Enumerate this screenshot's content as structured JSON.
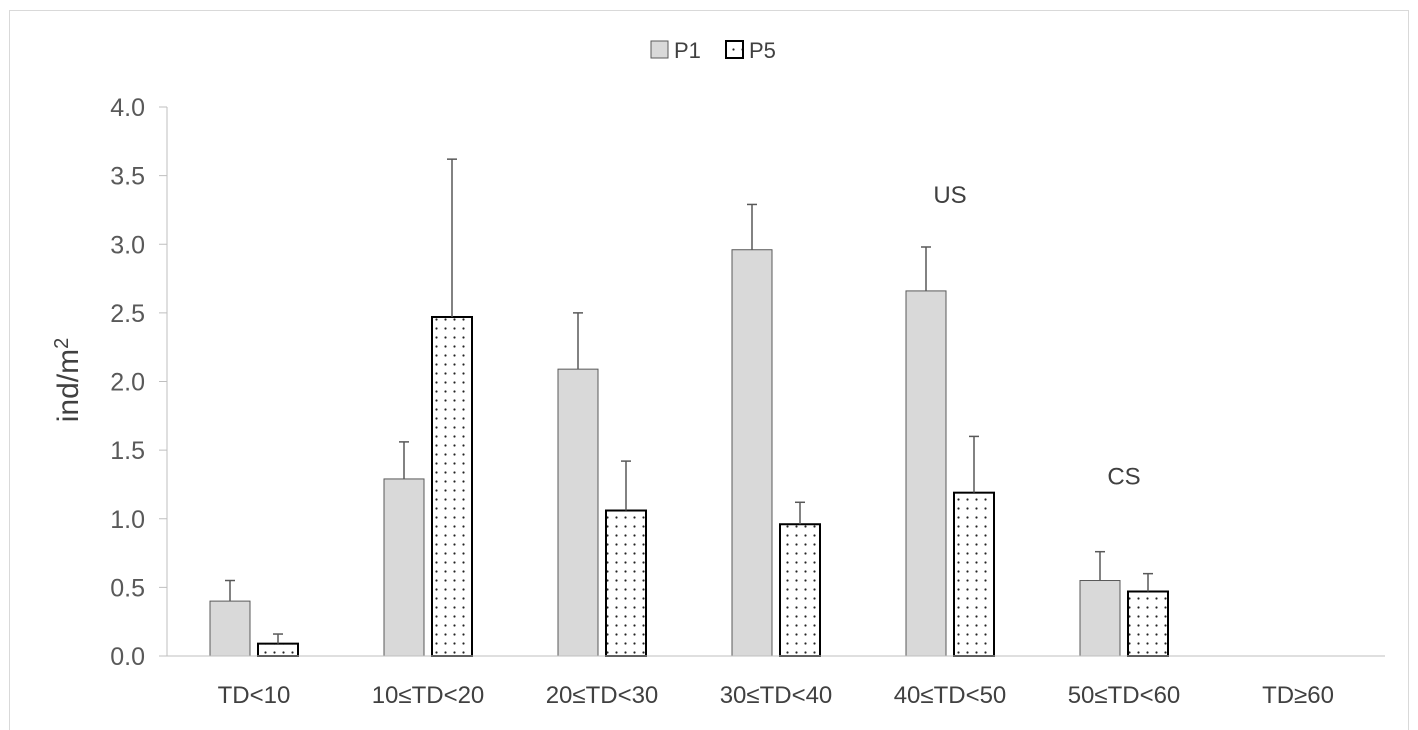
{
  "chart_data": {
    "type": "bar",
    "title": "",
    "xlabel": "",
    "ylabel": "ind/m",
    "ylabel_superscript": "2",
    "ylim": [
      0,
      4
    ],
    "yticks": [
      "0.0",
      "0.5",
      "1.0",
      "1.5",
      "2.0",
      "2.5",
      "3.0",
      "3.5",
      "4.0"
    ],
    "grid": false,
    "legend_position": "top-center",
    "categories": [
      "TD<10",
      "10≤TD<20",
      "20≤TD<30",
      "30≤TD<40",
      "40≤TD<50",
      "50≤TD<60",
      "TD≥60"
    ],
    "series": [
      {
        "name": "P1",
        "fill": "#d9d9d9",
        "pattern": "solid",
        "values": [
          0.4,
          1.29,
          2.09,
          2.96,
          2.66,
          0.55,
          0
        ],
        "error_upper": [
          0.55,
          1.56,
          2.5,
          3.29,
          2.98,
          0.76,
          0
        ]
      },
      {
        "name": "P5",
        "fill": "#ffffff",
        "pattern": "dotted",
        "values": [
          0.09,
          2.47,
          1.06,
          0.96,
          1.19,
          0.47,
          0
        ],
        "error_upper": [
          0.16,
          3.62,
          1.42,
          1.12,
          1.6,
          0.6,
          0
        ]
      }
    ],
    "annotations": [
      {
        "text": "US",
        "category_index": 4,
        "y": 3.3
      },
      {
        "text": "CS",
        "category_index": 5,
        "y": 1.25
      }
    ]
  }
}
